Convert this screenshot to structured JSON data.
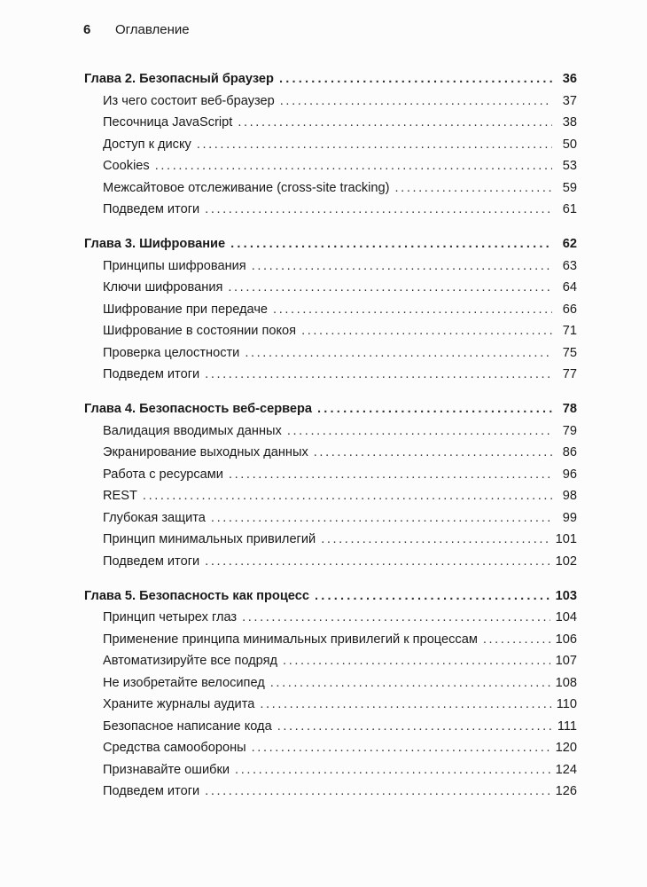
{
  "header": {
    "page_number": "6",
    "title": "Оглавление"
  },
  "chapters": [
    {
      "title": "Глава 2. Безопасный браузер",
      "page": "36",
      "items": [
        {
          "title": "Из чего состоит веб-браузер",
          "page": "37"
        },
        {
          "title": "Песочница JavaScript",
          "page": "38"
        },
        {
          "title": "Доступ к диску",
          "page": "50"
        },
        {
          "title": "Cookies",
          "page": "53"
        },
        {
          "title": "Межсайтовое отслеживание (cross-site tracking)",
          "page": "59"
        },
        {
          "title": "Подведем итоги",
          "page": "61"
        }
      ]
    },
    {
      "title": "Глава 3. Шифрование",
      "page": "62",
      "items": [
        {
          "title": "Принципы шифрования",
          "page": "63"
        },
        {
          "title": "Ключи шифрования",
          "page": "64"
        },
        {
          "title": "Шифрование при передаче",
          "page": "66"
        },
        {
          "title": "Шифрование в состоянии покоя",
          "page": "71"
        },
        {
          "title": "Проверка целостности",
          "page": "75"
        },
        {
          "title": "Подведем итоги",
          "page": "77"
        }
      ]
    },
    {
      "title": "Глава 4. Безопасность веб-сервера",
      "page": "78",
      "items": [
        {
          "title": "Валидация вводимых данных",
          "page": "79"
        },
        {
          "title": "Экранирование выходных данных",
          "page": "86"
        },
        {
          "title": "Работа с ресурсами",
          "page": "96"
        },
        {
          "title": "REST",
          "page": "98"
        },
        {
          "title": "Глубокая защита",
          "page": "99"
        },
        {
          "title": "Принцип минимальных привилегий",
          "page": "101"
        },
        {
          "title": "Подведем итоги",
          "page": "102"
        }
      ]
    },
    {
      "title": "Глава 5. Безопасность как процесс",
      "page": "103",
      "items": [
        {
          "title": "Принцип четырех глаз",
          "page": "104"
        },
        {
          "title": "Применение принципа минимальных привилегий к процессам",
          "page": "106"
        },
        {
          "title": "Автоматизируйте все подряд",
          "page": "107"
        },
        {
          "title": "Не изобретайте велосипед",
          "page": "108"
        },
        {
          "title": "Храните журналы аудита",
          "page": "110"
        },
        {
          "title": "Безопасное написание кода",
          "page": "111"
        },
        {
          "title": "Средства самообороны",
          "page": "120"
        },
        {
          "title": "Признавайте ошибки",
          "page": "124"
        },
        {
          "title": "Подведем итоги",
          "page": "126"
        }
      ]
    }
  ]
}
